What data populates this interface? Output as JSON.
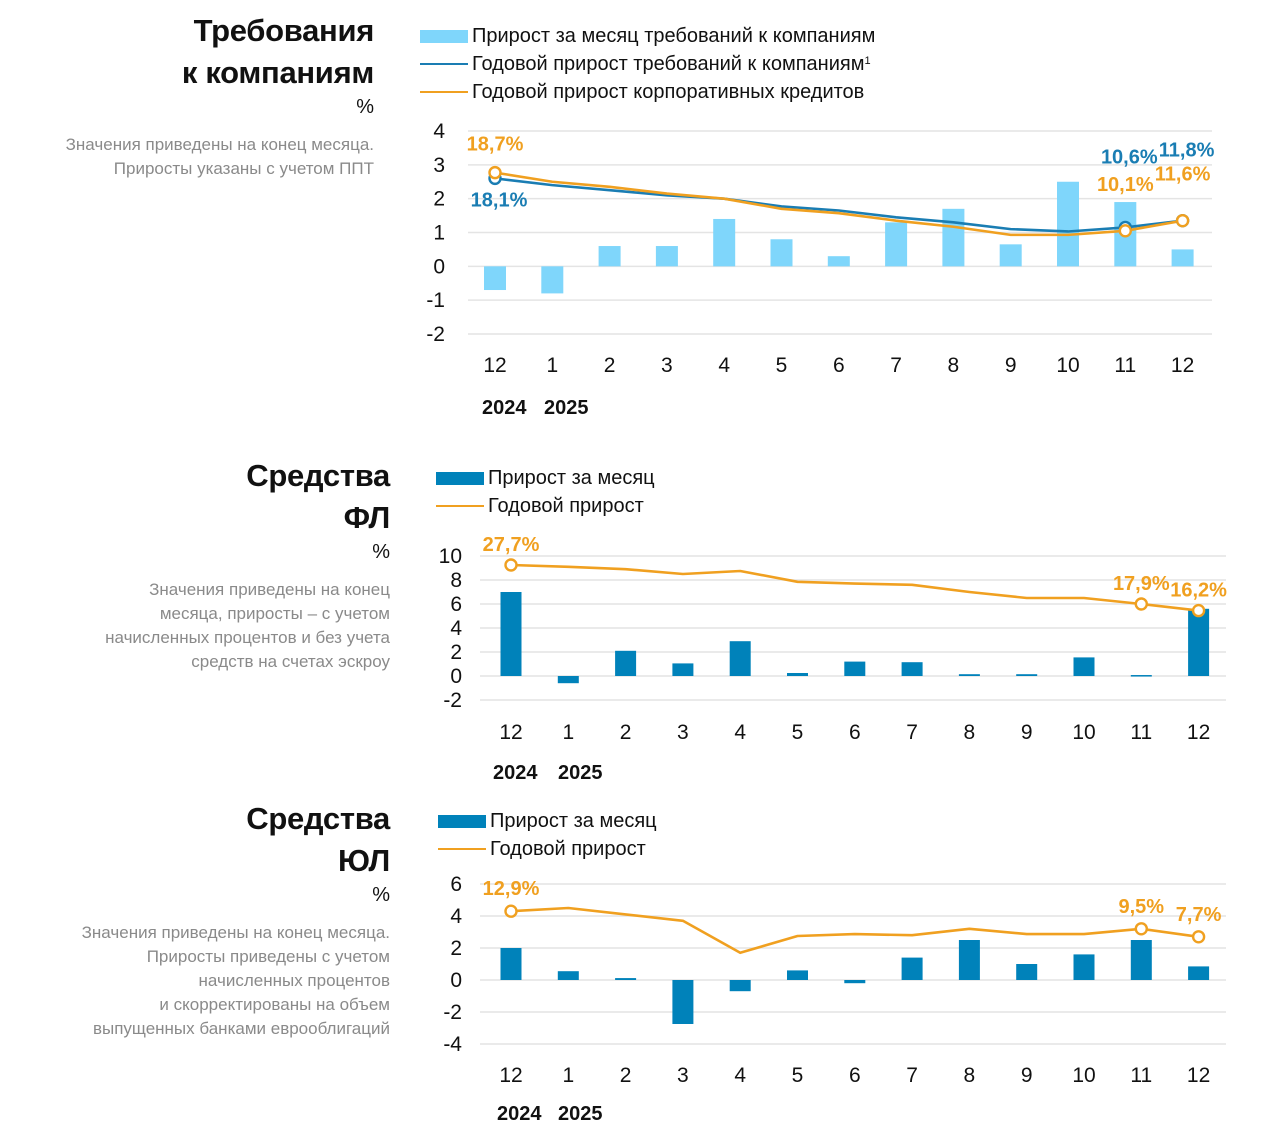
{
  "colors": {
    "bar_light": "#7fd6fb",
    "bar_dark": "#0082ba",
    "line_blue": "#1a7db3",
    "line_orange": "#f0a020",
    "grid": "#e4e4e4",
    "note_text": "#8a8a8a"
  },
  "panels": [
    {
      "title_lines": [
        "Требования",
        "к компаниям"
      ],
      "unit": "%",
      "note_lines": [
        "Значения приведены на конец месяца.",
        "Приросты указаны с учетом ППТ"
      ],
      "legend": [
        {
          "kind": "bar",
          "color": "#7fd6fb",
          "label": "Прирост за месяц требований к компаниям",
          "sup": ""
        },
        {
          "kind": "line",
          "color": "#1a7db3",
          "label": "Годовой прирост требований к компаниям",
          "sup": "1"
        },
        {
          "kind": "line",
          "color": "#f0a020",
          "label": "Годовой прирост корпоративных кредитов",
          "sup": ""
        }
      ]
    },
    {
      "title_lines": [
        "Средства",
        "ФЛ"
      ],
      "unit": "%",
      "note_lines": [
        "Значения приведены на конец",
        "месяца, приросты – с учетом",
        "начисленных процентов и без учета",
        "средств на счетах эскроу"
      ],
      "legend": [
        {
          "kind": "bar",
          "color": "#0082ba",
          "label": "Прирост за месяц",
          "sup": ""
        },
        {
          "kind": "line",
          "color": "#f0a020",
          "label": "Годовой прирост",
          "sup": ""
        }
      ]
    },
    {
      "title_lines": [
        "Средства",
        "ЮЛ"
      ],
      "unit": "%",
      "note_lines": [
        "Значения приведены на конец месяца.",
        "Приросты приведены с учетом",
        "начисленных процентов",
        "и скорректированы на объем",
        "выпущенных банками еврооблигаций"
      ],
      "legend": [
        {
          "kind": "bar",
          "color": "#0082ba",
          "label": "Прирост за месяц",
          "sup": ""
        },
        {
          "kind": "line",
          "color": "#f0a020",
          "label": "Годовой прирост",
          "sup": ""
        }
      ]
    }
  ],
  "chart_data": [
    {
      "type": "bar",
      "title": "Требования к компаниям",
      "ylabel": "%",
      "categories": [
        "12",
        "1",
        "2",
        "3",
        "4",
        "5",
        "6",
        "7",
        "8",
        "9",
        "10",
        "11",
        "12"
      ],
      "year_labels": [
        "2024",
        "2025"
      ],
      "ylim": [
        -2,
        4
      ],
      "yticks": [
        4,
        3,
        2,
        1,
        0,
        -1,
        -2
      ],
      "grid": true,
      "legend_position": "top",
      "series": [
        {
          "name": "Прирост за месяц требований к компаниям",
          "kind": "bar",
          "color": "#7fd6fb",
          "values": [
            -0.7,
            -0.8,
            0.6,
            0.6,
            1.4,
            0.8,
            0.3,
            1.3,
            1.7,
            0.65,
            2.5,
            1.9,
            0.5
          ]
        },
        {
          "name": "Годовой прирост требований к компаниям",
          "kind": "line",
          "color": "#1a7db3",
          "values": [
            2.6,
            2.4,
            2.25,
            2.1,
            2.0,
            1.77,
            1.65,
            1.45,
            1.3,
            1.1,
            1.03,
            1.15,
            1.35
          ]
        },
        {
          "name": "Годовой прирост корпоративных кредитов",
          "kind": "line",
          "color": "#f0a020",
          "values": [
            2.77,
            2.5,
            2.35,
            2.15,
            2.0,
            1.7,
            1.57,
            1.35,
            1.17,
            0.93,
            0.93,
            1.05,
            1.35
          ]
        }
      ],
      "annotations": [
        {
          "series": 2,
          "index": 0,
          "text": "18,7%",
          "color": "#f0a020",
          "pos": "above"
        },
        {
          "series": 1,
          "index": 0,
          "text": "18,1%",
          "color": "#1a7db3",
          "pos": "below"
        },
        {
          "series": 1,
          "index": 11,
          "text": "10,6%",
          "color": "#1a7db3",
          "pos": "high"
        },
        {
          "series": 1,
          "index": 12,
          "text": "11,8%",
          "color": "#1a7db3",
          "pos": "high"
        },
        {
          "series": 2,
          "index": 11,
          "text": "10,1%",
          "color": "#f0a020",
          "pos": "mid"
        },
        {
          "series": 2,
          "index": 12,
          "text": "11,6%",
          "color": "#f0a020",
          "pos": "mid"
        }
      ],
      "markers": [
        [
          1,
          0
        ],
        [
          2,
          0
        ],
        [
          1,
          11
        ],
        [
          2,
          11
        ],
        [
          1,
          12
        ],
        [
          2,
          12
        ]
      ]
    },
    {
      "type": "bar",
      "title": "Средства ФЛ",
      "ylabel": "%",
      "categories": [
        "12",
        "1",
        "2",
        "3",
        "4",
        "5",
        "6",
        "7",
        "8",
        "9",
        "10",
        "11",
        "12"
      ],
      "year_labels": [
        "2024",
        "2025"
      ],
      "ylim": [
        -2,
        10
      ],
      "yticks": [
        10,
        8,
        6,
        4,
        2,
        0,
        -2
      ],
      "grid": true,
      "legend_position": "top",
      "series": [
        {
          "name": "Прирост за месяц",
          "kind": "bar",
          "color": "#0082ba",
          "values": [
            7.0,
            -0.6,
            2.1,
            1.05,
            2.9,
            0.25,
            1.2,
            1.15,
            0.15,
            0.15,
            1.55,
            0.08,
            5.6
          ]
        },
        {
          "name": "Годовой прирост",
          "kind": "line",
          "color": "#f0a020",
          "values": [
            9.25,
            9.1,
            8.9,
            8.5,
            8.75,
            7.85,
            7.7,
            7.6,
            7.0,
            6.5,
            6.5,
            6.0,
            5.45
          ]
        }
      ],
      "annotations": [
        {
          "series": 1,
          "index": 0,
          "text": "27,7%",
          "color": "#f0a020",
          "pos": "above"
        },
        {
          "series": 1,
          "index": 11,
          "text": "17,9%",
          "color": "#f0a020",
          "pos": "above"
        },
        {
          "series": 1,
          "index": 12,
          "text": "16,2%",
          "color": "#f0a020",
          "pos": "above"
        }
      ],
      "markers": [
        [
          1,
          0
        ],
        [
          1,
          11
        ],
        [
          1,
          12
        ]
      ]
    },
    {
      "type": "bar",
      "title": "Средства ЮЛ",
      "ylabel": "%",
      "categories": [
        "12",
        "1",
        "2",
        "3",
        "4",
        "5",
        "6",
        "7",
        "8",
        "9",
        "10",
        "11",
        "12"
      ],
      "year_labels": [
        "2024",
        "2025"
      ],
      "ylim": [
        -4,
        6
      ],
      "yticks": [
        6,
        4,
        2,
        0,
        -2,
        -4
      ],
      "grid": true,
      "legend_position": "top",
      "series": [
        {
          "name": "Прирост за месяц",
          "kind": "bar",
          "color": "#0082ba",
          "values": [
            2.0,
            0.55,
            0.12,
            -2.75,
            -0.7,
            0.6,
            -0.2,
            1.4,
            2.5,
            1.0,
            1.6,
            2.5,
            0.85
          ]
        },
        {
          "name": "Годовой прирост",
          "kind": "line",
          "color": "#f0a020",
          "values": [
            4.3,
            4.5,
            4.1,
            3.7,
            1.7,
            2.75,
            2.87,
            2.8,
            3.2,
            2.87,
            2.87,
            3.2,
            2.7
          ]
        }
      ],
      "annotations": [
        {
          "series": 1,
          "index": 0,
          "text": "12,9%",
          "color": "#f0a020",
          "pos": "above"
        },
        {
          "series": 1,
          "index": 11,
          "text": "9,5%",
          "color": "#f0a020",
          "pos": "above"
        },
        {
          "series": 1,
          "index": 12,
          "text": "7,7%",
          "color": "#f0a020",
          "pos": "above"
        }
      ],
      "markers": [
        [
          1,
          0
        ],
        [
          1,
          11
        ],
        [
          1,
          12
        ]
      ]
    }
  ]
}
